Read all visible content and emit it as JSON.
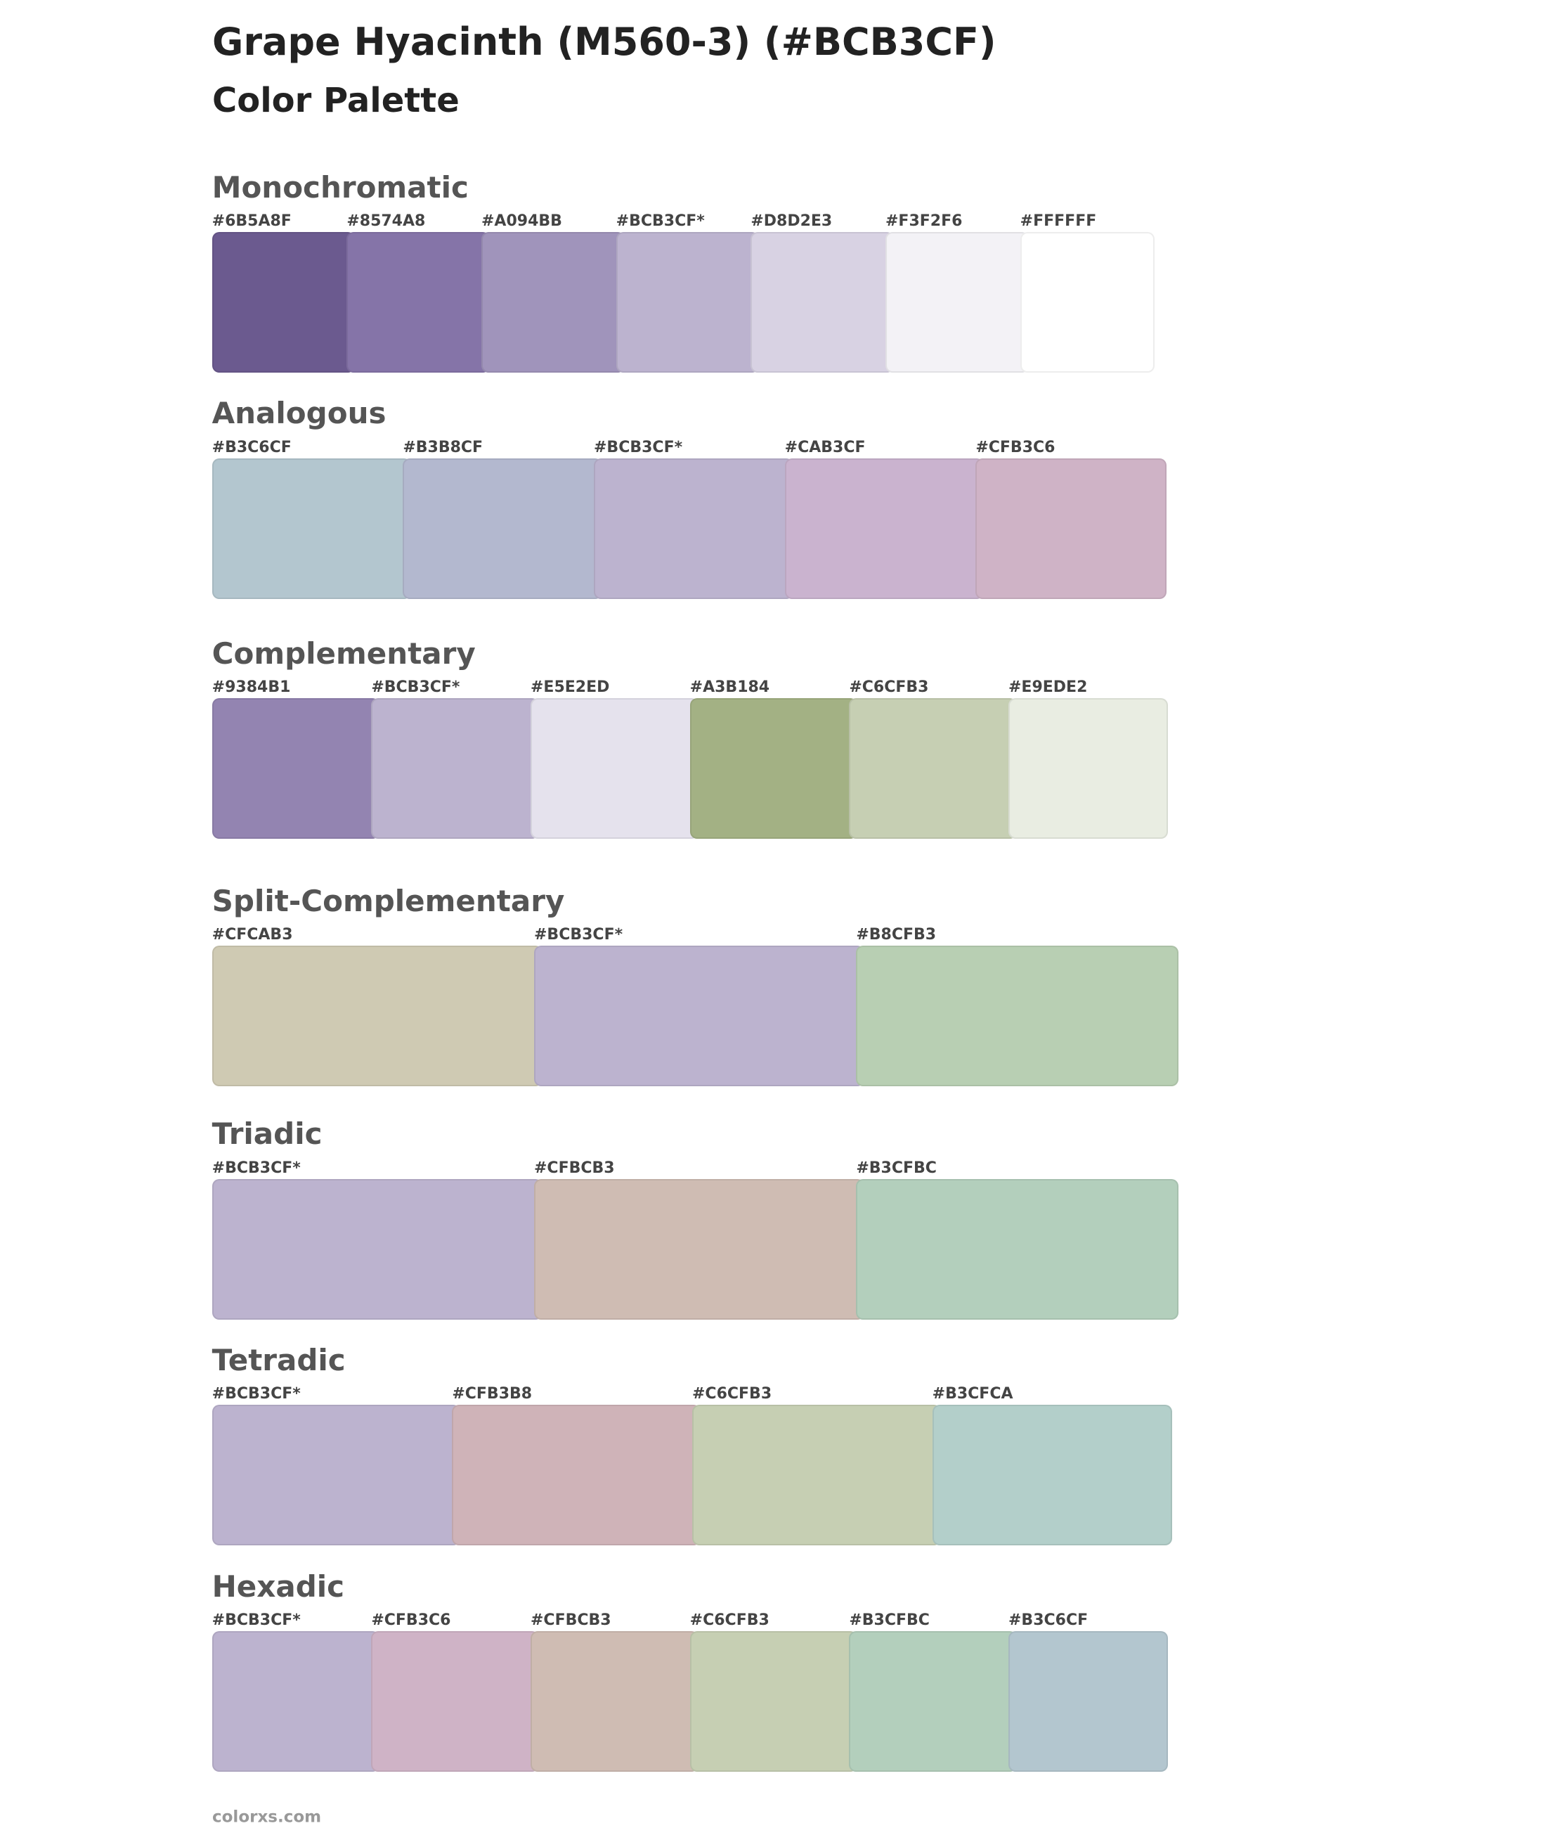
{
  "header": {
    "title": "Grape Hyacinth (M560-3) (#BCB3CF)",
    "subtitle": "Color Palette"
  },
  "sections": [
    {
      "name": "Monochromatic",
      "swatches": [
        {
          "label": "#6B5A8F",
          "color": "#6B5A8F"
        },
        {
          "label": "#8574A8",
          "color": "#8574A8"
        },
        {
          "label": "#A094BB",
          "color": "#A094BB"
        },
        {
          "label": "#BCB3CF*",
          "color": "#BCB3CF"
        },
        {
          "label": "#D8D2E3",
          "color": "#D8D2E3"
        },
        {
          "label": "#F3F2F6",
          "color": "#F3F2F6"
        },
        {
          "label": "#FFFFFF",
          "color": "#FFFFFF"
        }
      ]
    },
    {
      "name": "Analogous",
      "swatches": [
        {
          "label": "#B3C6CF",
          "color": "#B3C6CF"
        },
        {
          "label": "#B3B8CF",
          "color": "#B3B8CF"
        },
        {
          "label": "#BCB3CF*",
          "color": "#BCB3CF"
        },
        {
          "label": "#CAB3CF",
          "color": "#CAB3CF"
        },
        {
          "label": "#CFB3C6",
          "color": "#CFB3C6"
        }
      ]
    },
    {
      "name": "Complementary",
      "swatches": [
        {
          "label": "#9384B1",
          "color": "#9384B1"
        },
        {
          "label": "#BCB3CF*",
          "color": "#BCB3CF"
        },
        {
          "label": "#E5E2ED",
          "color": "#E5E2ED"
        },
        {
          "label": "#A3B184",
          "color": "#A3B184"
        },
        {
          "label": "#C6CFB3",
          "color": "#C6CFB3"
        },
        {
          "label": "#E9EDE2",
          "color": "#E9EDE2"
        }
      ]
    },
    {
      "name": "Split-Complementary",
      "swatches": [
        {
          "label": "#CFCAB3",
          "color": "#CFCAB3"
        },
        {
          "label": "#BCB3CF*",
          "color": "#BCB3CF"
        },
        {
          "label": "#B8CFB3",
          "color": "#B8CFB3"
        }
      ]
    },
    {
      "name": "Triadic",
      "swatches": [
        {
          "label": "#BCB3CF*",
          "color": "#BCB3CF"
        },
        {
          "label": "#CFBCB3",
          "color": "#CFBCB3"
        },
        {
          "label": "#B3CFBC",
          "color": "#B3CFBC"
        }
      ]
    },
    {
      "name": "Tetradic",
      "swatches": [
        {
          "label": "#BCB3CF*",
          "color": "#BCB3CF"
        },
        {
          "label": "#CFB3B8",
          "color": "#CFB3B8"
        },
        {
          "label": "#C6CFB3",
          "color": "#C6CFB3"
        },
        {
          "label": "#B3CFCA",
          "color": "#B3CFCA"
        }
      ]
    },
    {
      "name": "Hexadic",
      "swatches": [
        {
          "label": "#BCB3CF*",
          "color": "#BCB3CF"
        },
        {
          "label": "#CFB3C6",
          "color": "#CFB3C6"
        },
        {
          "label": "#CFBCB3",
          "color": "#CFBCB3"
        },
        {
          "label": "#C6CFB3",
          "color": "#C6CFB3"
        },
        {
          "label": "#B3CFBC",
          "color": "#B3CFBC"
        },
        {
          "label": "#B3C6CF",
          "color": "#B3C6CF"
        }
      ]
    }
  ],
  "footer": "colorxs.com"
}
